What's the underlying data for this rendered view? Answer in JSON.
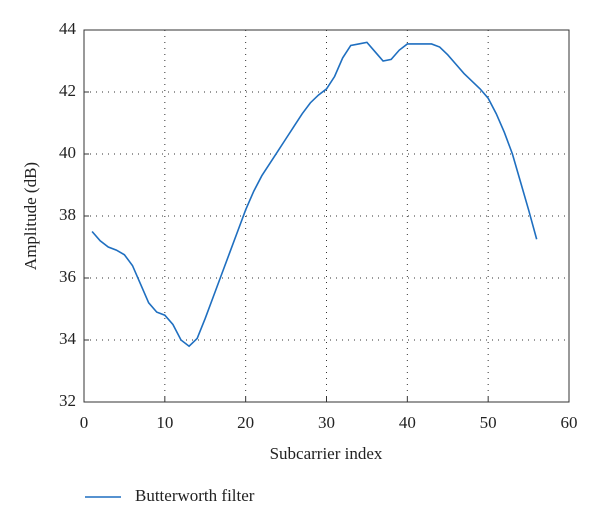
{
  "chart_data": {
    "type": "line",
    "x_label": "Subcarrier index",
    "y_label": "Amplitude (dB)",
    "x": [
      1,
      2,
      3,
      4,
      5,
      6,
      7,
      8,
      9,
      10,
      11,
      12,
      13,
      14,
      15,
      16,
      17,
      18,
      19,
      20,
      21,
      22,
      23,
      24,
      25,
      26,
      27,
      28,
      29,
      30,
      31,
      32,
      33,
      34,
      35,
      36,
      37,
      38,
      39,
      40,
      41,
      42,
      43,
      44,
      45,
      46,
      47,
      48,
      49,
      50,
      51,
      52,
      53,
      54,
      55,
      56
    ],
    "series": [
      {
        "name": "Butterworth filter",
        "color": "#1f6fc0",
        "values": [
          37.5,
          37.2,
          37.0,
          36.9,
          36.75,
          36.4,
          35.8,
          35.2,
          34.9,
          34.8,
          34.5,
          34.0,
          33.8,
          34.05,
          34.7,
          35.4,
          36.1,
          36.8,
          37.5,
          38.2,
          38.8,
          39.3,
          39.7,
          40.1,
          40.5,
          40.9,
          41.3,
          41.65,
          41.9,
          42.1,
          42.5,
          43.1,
          43.5,
          43.55,
          43.6,
          43.3,
          43.0,
          43.05,
          43.35,
          43.55,
          43.55,
          43.55,
          43.55,
          43.45,
          43.2,
          42.9,
          42.6,
          42.35,
          42.1,
          41.8,
          41.3,
          40.7,
          40.0,
          39.1,
          38.2,
          37.25
        ]
      }
    ],
    "xlim": [
      0,
      60
    ],
    "xticks": [
      0,
      10,
      20,
      30,
      40,
      50,
      60
    ],
    "ylim": [
      32,
      44
    ],
    "yticks": [
      32,
      34,
      36,
      38,
      40,
      42,
      44
    ],
    "grid": true,
    "legend": "bottom"
  }
}
